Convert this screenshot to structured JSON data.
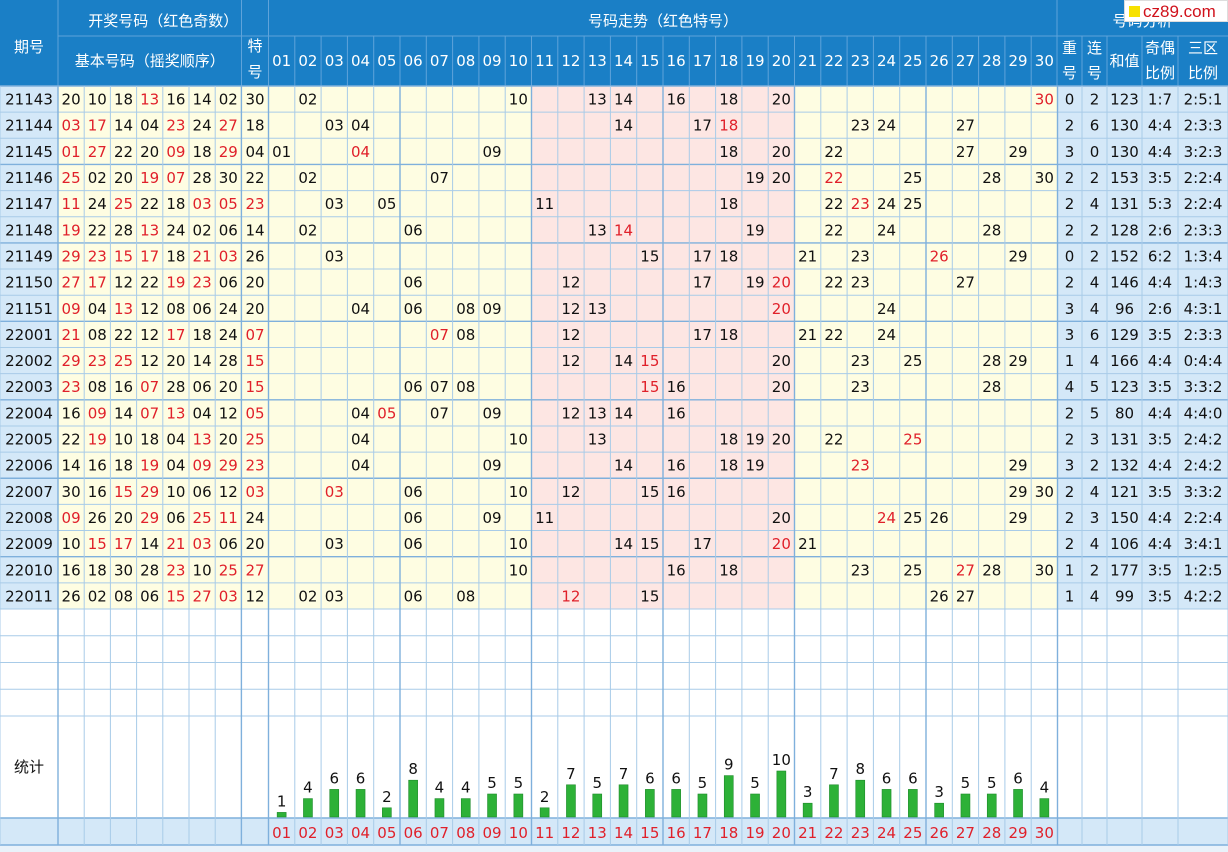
{
  "header": {
    "period_label": "期号",
    "kaijiang_title": "开奖号码（红色奇数）",
    "basic_title": "基本号码（摇奖顺序）",
    "special_title": "特号",
    "trend_title": "号码走势（红色特号）",
    "analysis_title": "号码分析",
    "analysis_cols": [
      "重号",
      "连号",
      "和值",
      "奇偶比例",
      "三区比例"
    ],
    "numbers": [
      "01",
      "02",
      "03",
      "04",
      "05",
      "06",
      "07",
      "08",
      "09",
      "10",
      "11",
      "12",
      "13",
      "14",
      "15",
      "16",
      "17",
      "18",
      "19",
      "20",
      "21",
      "22",
      "23",
      "24",
      "25",
      "26",
      "27",
      "28",
      "29",
      "30"
    ]
  },
  "logo_text": "cz89.com",
  "stat_label": "统计",
  "colors": {
    "header": "#1a7fc6",
    "odd": "#e0202a",
    "cream": "#fefde2",
    "pink": "#fde6e3",
    "side": "#d4e8f8",
    "bar": "#2db137"
  },
  "rows": [
    {
      "period": "21143",
      "basic": [
        "20",
        "10",
        "18",
        "13",
        "16",
        "14",
        "02"
      ],
      "special": "30",
      "trend": [
        "02",
        "10",
        "13",
        "14",
        "16",
        "18",
        "20",
        "30"
      ],
      "rep": "0",
      "consec": "2",
      "sum": "123",
      "oe": "1:7",
      "zone": "2:5:1"
    },
    {
      "period": "21144",
      "basic": [
        "03",
        "17",
        "14",
        "04",
        "23",
        "24",
        "27"
      ],
      "special": "18",
      "trend": [
        "03",
        "04",
        "14",
        "17",
        "18",
        "23",
        "24",
        "27"
      ],
      "rep": "2",
      "consec": "6",
      "sum": "130",
      "oe": "4:4",
      "zone": "2:3:3"
    },
    {
      "period": "21145",
      "basic": [
        "01",
        "27",
        "22",
        "20",
        "09",
        "18",
        "29"
      ],
      "special": "04",
      "trend": [
        "01",
        "04",
        "09",
        "18",
        "20",
        "22",
        "27",
        "29"
      ],
      "rep": "3",
      "consec": "0",
      "sum": "130",
      "oe": "4:4",
      "zone": "3:2:3"
    },
    {
      "period": "21146",
      "basic": [
        "25",
        "02",
        "20",
        "19",
        "07",
        "28",
        "30"
      ],
      "special": "22",
      "trend": [
        "02",
        "07",
        "19",
        "20",
        "22",
        "25",
        "28",
        "30"
      ],
      "rep": "2",
      "consec": "2",
      "sum": "153",
      "oe": "3:5",
      "zone": "2:2:4"
    },
    {
      "period": "21147",
      "basic": [
        "11",
        "24",
        "25",
        "22",
        "18",
        "03",
        "05"
      ],
      "special": "23",
      "trend": [
        "03",
        "05",
        "11",
        "18",
        "22",
        "23",
        "24",
        "25"
      ],
      "rep": "2",
      "consec": "4",
      "sum": "131",
      "oe": "5:3",
      "zone": "2:2:4"
    },
    {
      "period": "21148",
      "basic": [
        "19",
        "22",
        "28",
        "13",
        "24",
        "02",
        "06"
      ],
      "special": "14",
      "trend": [
        "02",
        "06",
        "13",
        "14",
        "19",
        "22",
        "24",
        "28"
      ],
      "rep": "2",
      "consec": "2",
      "sum": "128",
      "oe": "2:6",
      "zone": "2:3:3"
    },
    {
      "period": "21149",
      "basic": [
        "29",
        "23",
        "15",
        "17",
        "18",
        "21",
        "03"
      ],
      "special": "26",
      "trend": [
        "03",
        "15",
        "17",
        "18",
        "21",
        "23",
        "26",
        "29"
      ],
      "rep": "0",
      "consec": "2",
      "sum": "152",
      "oe": "6:2",
      "zone": "1:3:4"
    },
    {
      "period": "21150",
      "basic": [
        "27",
        "17",
        "12",
        "22",
        "19",
        "23",
        "06"
      ],
      "special": "20",
      "trend": [
        "06",
        "12",
        "17",
        "19",
        "20",
        "22",
        "23",
        "27"
      ],
      "rep": "2",
      "consec": "4",
      "sum": "146",
      "oe": "4:4",
      "zone": "1:4:3"
    },
    {
      "period": "21151",
      "basic": [
        "09",
        "04",
        "13",
        "12",
        "08",
        "06",
        "24"
      ],
      "special": "20",
      "trend": [
        "04",
        "06",
        "08",
        "09",
        "12",
        "13",
        "20",
        "24"
      ],
      "rep": "3",
      "consec": "4",
      "sum": "96",
      "oe": "2:6",
      "zone": "4:3:1"
    },
    {
      "period": "22001",
      "basic": [
        "21",
        "08",
        "22",
        "12",
        "17",
        "18",
        "24"
      ],
      "special": "07",
      "trend": [
        "07",
        "08",
        "12",
        "17",
        "18",
        "21",
        "22",
        "24"
      ],
      "rep": "3",
      "consec": "6",
      "sum": "129",
      "oe": "3:5",
      "zone": "2:3:3"
    },
    {
      "period": "22002",
      "basic": [
        "29",
        "23",
        "25",
        "12",
        "20",
        "14",
        "28"
      ],
      "special": "15",
      "trend": [
        "12",
        "14",
        "15",
        "20",
        "23",
        "25",
        "28",
        "29"
      ],
      "rep": "1",
      "consec": "4",
      "sum": "166",
      "oe": "4:4",
      "zone": "0:4:4"
    },
    {
      "period": "22003",
      "basic": [
        "23",
        "08",
        "16",
        "07",
        "28",
        "06",
        "20"
      ],
      "special": "15",
      "trend": [
        "06",
        "07",
        "08",
        "15",
        "16",
        "20",
        "23",
        "28"
      ],
      "rep": "4",
      "consec": "5",
      "sum": "123",
      "oe": "3:5",
      "zone": "3:3:2"
    },
    {
      "period": "22004",
      "basic": [
        "16",
        "09",
        "14",
        "07",
        "13",
        "04",
        "12"
      ],
      "special": "05",
      "trend": [
        "04",
        "05",
        "07",
        "09",
        "12",
        "13",
        "14",
        "16"
      ],
      "rep": "2",
      "consec": "5",
      "sum": "80",
      "oe": "4:4",
      "zone": "4:4:0"
    },
    {
      "period": "22005",
      "basic": [
        "22",
        "19",
        "10",
        "18",
        "04",
        "13",
        "20"
      ],
      "special": "25",
      "trend": [
        "04",
        "10",
        "13",
        "18",
        "19",
        "20",
        "22",
        "25"
      ],
      "rep": "2",
      "consec": "3",
      "sum": "131",
      "oe": "3:5",
      "zone": "2:4:2"
    },
    {
      "period": "22006",
      "basic": [
        "14",
        "16",
        "18",
        "19",
        "04",
        "09",
        "29"
      ],
      "special": "23",
      "trend": [
        "04",
        "09",
        "14",
        "16",
        "18",
        "19",
        "23",
        "29"
      ],
      "rep": "3",
      "consec": "2",
      "sum": "132",
      "oe": "4:4",
      "zone": "2:4:2"
    },
    {
      "period": "22007",
      "basic": [
        "30",
        "16",
        "15",
        "29",
        "10",
        "06",
        "12"
      ],
      "special": "03",
      "trend": [
        "03",
        "06",
        "10",
        "12",
        "15",
        "16",
        "29",
        "30"
      ],
      "rep": "2",
      "consec": "4",
      "sum": "121",
      "oe": "3:5",
      "zone": "3:3:2"
    },
    {
      "period": "22008",
      "basic": [
        "09",
        "26",
        "20",
        "29",
        "06",
        "25",
        "11"
      ],
      "special": "24",
      "trend": [
        "06",
        "09",
        "11",
        "20",
        "24",
        "25",
        "26",
        "29"
      ],
      "rep": "2",
      "consec": "3",
      "sum": "150",
      "oe": "4:4",
      "zone": "2:2:4"
    },
    {
      "period": "22009",
      "basic": [
        "10",
        "15",
        "17",
        "14",
        "21",
        "03",
        "06"
      ],
      "special": "20",
      "trend": [
        "03",
        "06",
        "10",
        "14",
        "15",
        "17",
        "20",
        "21"
      ],
      "rep": "2",
      "consec": "4",
      "sum": "106",
      "oe": "4:4",
      "zone": "3:4:1"
    },
    {
      "period": "22010",
      "basic": [
        "16",
        "18",
        "30",
        "28",
        "23",
        "10",
        "25"
      ],
      "special": "27",
      "trend": [
        "10",
        "16",
        "18",
        "23",
        "25",
        "27",
        "28",
        "30"
      ],
      "rep": "1",
      "consec": "2",
      "sum": "177",
      "oe": "3:5",
      "zone": "1:2:5"
    },
    {
      "period": "22011",
      "basic": [
        "26",
        "02",
        "08",
        "06",
        "15",
        "27",
        "03"
      ],
      "special": "12",
      "trend": [
        "02",
        "03",
        "06",
        "08",
        "12",
        "15",
        "26",
        "27"
      ],
      "rep": "1",
      "consec": "4",
      "sum": "99",
      "oe": "3:5",
      "zone": "4:2:2"
    }
  ],
  "chart_data": {
    "type": "bar",
    "categories": [
      "01",
      "02",
      "03",
      "04",
      "05",
      "06",
      "07",
      "08",
      "09",
      "10",
      "11",
      "12",
      "13",
      "14",
      "15",
      "16",
      "17",
      "18",
      "19",
      "20",
      "21",
      "22",
      "23",
      "24",
      "25",
      "26",
      "27",
      "28",
      "29",
      "30"
    ],
    "values": [
      1,
      4,
      6,
      6,
      2,
      8,
      4,
      4,
      5,
      5,
      2,
      7,
      5,
      7,
      6,
      6,
      5,
      9,
      5,
      10,
      3,
      7,
      8,
      6,
      6,
      3,
      5,
      5,
      6,
      4
    ],
    "title": "统计",
    "ylim": [
      0,
      10
    ]
  }
}
